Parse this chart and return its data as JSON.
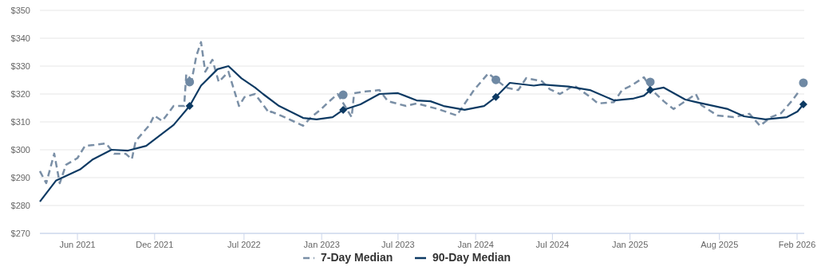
{
  "chart_data": {
    "type": "line",
    "xlim": [
      "2021-03-04",
      "2026-02-18"
    ],
    "ylim": [
      270,
      350
    ],
    "xticks": [
      {
        "value": "2021-06-01",
        "label": "Jun 2021"
      },
      {
        "value": "2021-12-01",
        "label": "Dec 2021"
      },
      {
        "value": "2022-07-01",
        "label": "Jul 2022"
      },
      {
        "value": "2023-01-01",
        "label": "Jan 2023"
      },
      {
        "value": "2023-07-01",
        "label": "Jul 2023"
      },
      {
        "value": "2024-01-01",
        "label": "Jan 2024"
      },
      {
        "value": "2024-07-01",
        "label": "Jul 2024"
      },
      {
        "value": "2025-01-01",
        "label": "Jan 2025"
      },
      {
        "value": "2025-08-01",
        "label": "Aug 2025"
      },
      {
        "value": "2026-02-01",
        "label": "Feb 2026"
      }
    ],
    "yticks": [
      {
        "value": 270,
        "label": "$270"
      },
      {
        "value": 280,
        "label": "$280"
      },
      {
        "value": 290,
        "label": "$290"
      },
      {
        "value": 300,
        "label": "$300"
      },
      {
        "value": 310,
        "label": "$310"
      },
      {
        "value": 320,
        "label": "$320"
      },
      {
        "value": 330,
        "label": "$330"
      },
      {
        "value": 340,
        "label": "$340"
      },
      {
        "value": 350,
        "label": "$350"
      }
    ],
    "grid": "y",
    "legend": "bottom",
    "series": [
      {
        "name": "7-Day Median",
        "color": "#7a8fa6",
        "line_style": "dashed",
        "marker": "none",
        "x": [
          "2021-03-04",
          "2021-03-19",
          "2021-04-07",
          "2021-04-20",
          "2021-05-05",
          "2021-06-01",
          "2021-06-19",
          "2021-07-10",
          "2021-08-08",
          "2021-08-27",
          "2021-09-23",
          "2021-10-08",
          "2021-10-17",
          "2021-11-19",
          "2021-11-30",
          "2021-12-19",
          "2022-01-15",
          "2022-02-09",
          "2022-02-14",
          "2022-02-27",
          "2022-03-10",
          "2022-03-21",
          "2022-03-31",
          "2022-04-17",
          "2022-05-02",
          "2022-05-25",
          "2022-06-19",
          "2022-07-02",
          "2022-07-27",
          "2022-08-30",
          "2022-09-03",
          "2022-10-05",
          "2022-11-18",
          "2022-12-07",
          "2022-12-31",
          "2023-01-17",
          "2023-02-08",
          "2023-03-13",
          "2023-03-19",
          "2023-04-16",
          "2023-05-18",
          "2023-06-07",
          "2023-07-20",
          "2023-08-14",
          "2023-10-04",
          "2023-11-17",
          "2023-12-28",
          "2024-01-31",
          "2024-03-13",
          "2024-04-11",
          "2024-04-30",
          "2024-06-06",
          "2024-06-25",
          "2024-07-19",
          "2024-08-21",
          "2024-09-28",
          "2024-10-17",
          "2024-11-24",
          "2024-12-13",
          "2025-01-05",
          "2025-02-03",
          "2025-02-22",
          "2025-03-22",
          "2025-04-14",
          "2025-05-12",
          "2025-06-06",
          "2025-06-19",
          "2025-07-27",
          "2025-09-03",
          "2025-10-11",
          "2025-11-05",
          "2025-12-01",
          "2025-12-25",
          "2026-01-19",
          "2026-02-08"
        ],
        "values": [
          292.3,
          288,
          298.6,
          288,
          294.6,
          297,
          301.4,
          301.7,
          302.3,
          298.6,
          298.6,
          296.6,
          303.1,
          308.9,
          312.3,
          310.3,
          315.7,
          315.7,
          327.1,
          325,
          333.7,
          338.6,
          328,
          332.3,
          324.3,
          328,
          315.7,
          318.9,
          320,
          313.1,
          313.7,
          311.7,
          308.6,
          311.7,
          314.6,
          317.1,
          320,
          311.7,
          320.3,
          320.9,
          321.4,
          317.4,
          315.7,
          316.6,
          314.6,
          312.3,
          321.4,
          327.4,
          322.3,
          321.4,
          325.7,
          324.6,
          321.7,
          320,
          323.1,
          319,
          316.6,
          317.1,
          321.4,
          323.1,
          326,
          321.4,
          317.4,
          314.6,
          317.4,
          320,
          316,
          312.3,
          311.7,
          312.9,
          308.6,
          311.7,
          313.1,
          317.4,
          321.4
        ]
      },
      {
        "name": "90-Day Median",
        "color": "#0d3a63",
        "line_style": "solid",
        "marker": "none",
        "x": [
          "2021-03-04",
          "2021-04-11",
          "2021-06-07",
          "2021-07-08",
          "2021-08-21",
          "2021-09-29",
          "2021-11-11",
          "2022-01-15",
          "2022-02-22",
          "2022-03-21",
          "2022-04-29",
          "2022-05-25",
          "2022-06-25",
          "2022-07-27",
          "2022-08-15",
          "2022-09-22",
          "2022-11-18",
          "2022-12-20",
          "2023-01-27",
          "2023-02-21",
          "2023-04-03",
          "2023-05-18",
          "2023-07-01",
          "2023-08-14",
          "2023-09-16",
          "2023-10-17",
          "2023-12-06",
          "2024-01-21",
          "2024-02-18",
          "2024-03-22",
          "2024-05-18",
          "2024-06-06",
          "2024-08-08",
          "2024-09-28",
          "2024-11-24",
          "2025-01-07",
          "2025-02-03",
          "2025-02-18",
          "2025-03-22",
          "2025-05-12",
          "2025-06-06",
          "2025-08-21",
          "2025-09-28",
          "2025-11-18",
          "2026-01-08",
          "2026-02-02",
          "2026-02-16"
        ],
        "values": [
          281.4,
          288.9,
          292.9,
          296.6,
          300,
          299.7,
          301.4,
          308.9,
          315.7,
          323,
          328.9,
          330,
          325.6,
          322.3,
          320,
          315.7,
          311.4,
          310.9,
          311.7,
          314.3,
          316.3,
          320,
          320.3,
          317.7,
          317.4,
          315.7,
          314.3,
          315.7,
          318.9,
          324,
          323,
          323.4,
          322.7,
          321.4,
          317.7,
          318.3,
          319.4,
          321.4,
          322.3,
          318,
          317.1,
          314.6,
          312,
          310.9,
          311.7,
          313.7,
          316.3
        ]
      },
      {
        "type": "scatter",
        "color": "#6f89a4",
        "marker": "circle",
        "x": [
          "2022-02-22",
          "2023-02-21",
          "2024-02-18",
          "2025-02-18",
          "2026-02-16"
        ],
        "values": [
          324.3,
          319.7,
          325.1,
          324.3,
          324
        ]
      },
      {
        "type": "scatter",
        "color": "#0d3a63",
        "marker": "diamond",
        "x": [
          "2022-02-22",
          "2023-02-21",
          "2024-02-18",
          "2025-02-18",
          "2026-02-16"
        ],
        "values": [
          315.7,
          314.3,
          318.9,
          321.4,
          316.3
        ]
      }
    ]
  }
}
